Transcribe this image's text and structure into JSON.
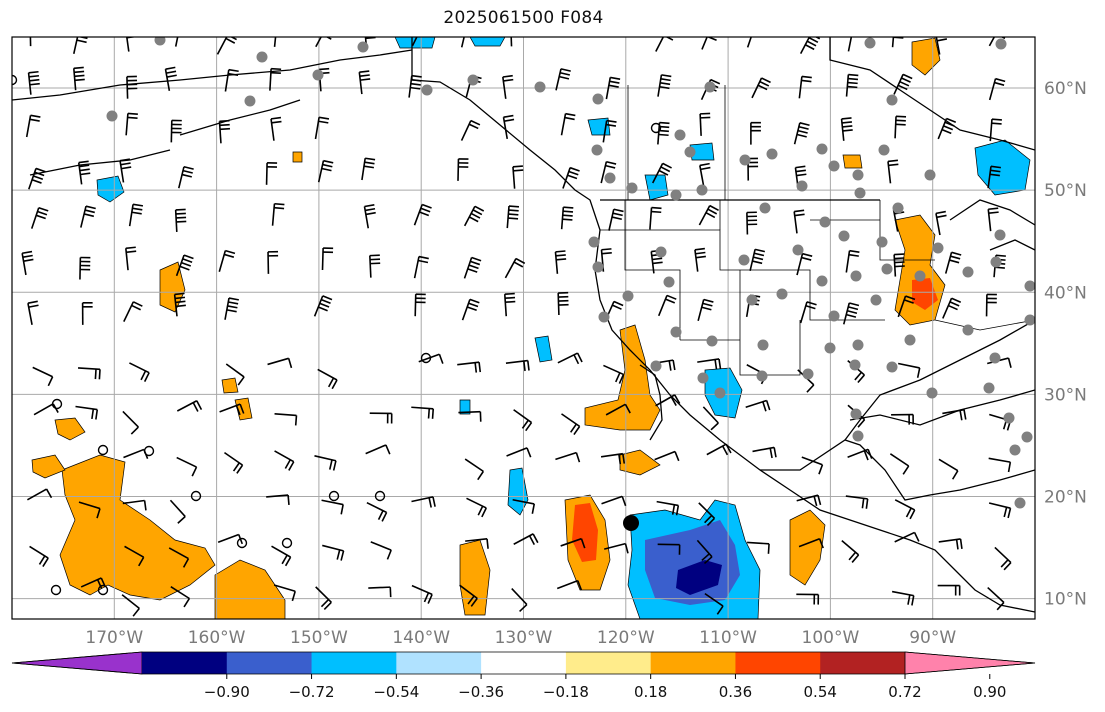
{
  "title": "2025061500 F084",
  "lat_axis": {
    "labels": [
      "60°N",
      "50°N",
      "40°N",
      "30°N",
      "20°N",
      "10°N"
    ],
    "values": [
      60,
      50,
      40,
      30,
      20,
      10
    ]
  },
  "lon_axis": {
    "labels": [
      "170°W",
      "160°W",
      "150°W",
      "140°W",
      "130°W",
      "120°W",
      "110°W",
      "100°W",
      "90°W"
    ],
    "values": [
      -170,
      -160,
      -150,
      -140,
      -130,
      -120,
      -110,
      -100,
      -90
    ]
  },
  "extent": {
    "lon": [
      -180,
      -80
    ],
    "lat": [
      8,
      65
    ]
  },
  "colorbar": {
    "tick_labels": [
      "−0.90",
      "−0.72",
      "−0.54",
      "−0.36",
      "−0.18",
      "0.18",
      "0.36",
      "0.54",
      "0.72",
      "0.90"
    ],
    "levels": [
      -0.9,
      -0.72,
      -0.54,
      -0.36,
      -0.18,
      0.18,
      0.36,
      0.54,
      0.72,
      0.9
    ],
    "colors": [
      "#9932cc",
      "#000080",
      "#3a5fcd",
      "#00bfff",
      "#b0e2ff",
      "#ffffff",
      "#ffec8b",
      "#ffa500",
      "#ff4500",
      "#b22222",
      "#ff82ab"
    ]
  },
  "colors": {
    "grid": "#a9a9a9",
    "coast": "#000000",
    "station": "#808080",
    "tick_text": "#7a7a7a"
  },
  "chart_data": {
    "type": "map",
    "fields": {
      "positive_anomalies": [
        {
          "lon": -166,
          "lat": 17,
          "level": 0.54
        },
        {
          "lon": -124,
          "lat": 16,
          "level": 0.72
        },
        {
          "lon": -92,
          "lat": 41,
          "level": 0.72
        },
        {
          "lon": -117,
          "lat": 31,
          "level": 0.36
        },
        {
          "lon": -100,
          "lat": 16,
          "level": 0.36
        }
      ],
      "negative_anomalies": [
        {
          "lon": -112,
          "lat": 12,
          "level": -0.9
        },
        {
          "lon": -119,
          "lat": 15,
          "level": -0.54
        },
        {
          "lon": -85,
          "lat": 52,
          "level": -0.36
        },
        {
          "lon": -130,
          "lat": 20,
          "level": -0.36
        }
      ]
    }
  }
}
